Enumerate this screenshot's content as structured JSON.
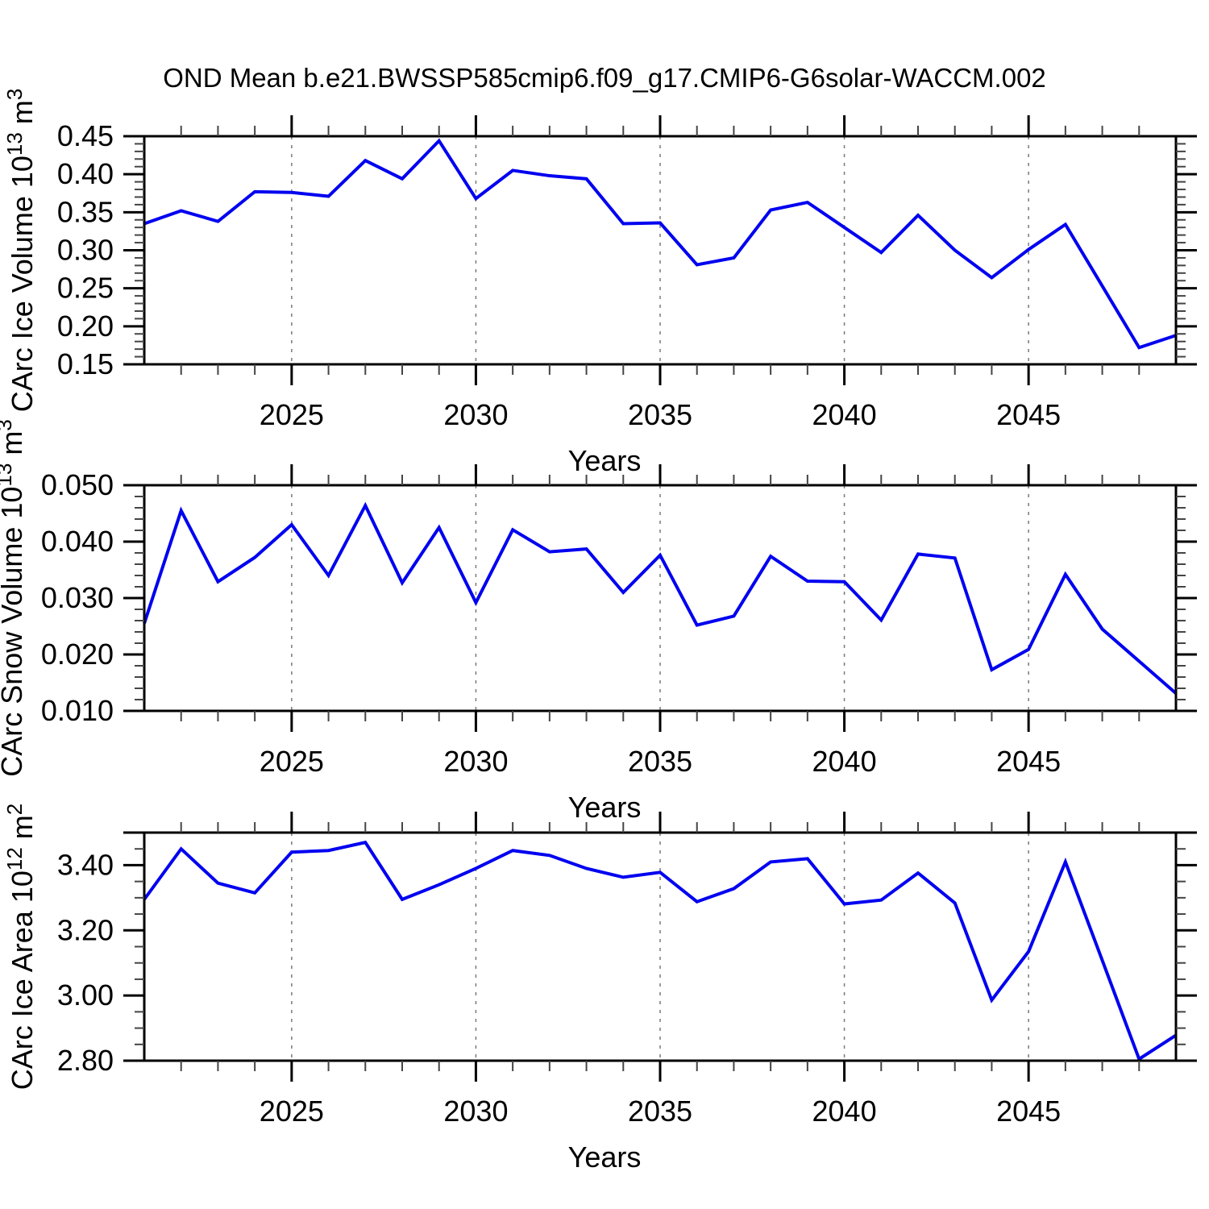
{
  "title": "OND Mean b.e21.BWSSP585cmip6.f09_g17.CMIP6-G6solar-WACCM.002",
  "colors": {
    "line": "#0000f0",
    "grid": "#7a7a7a",
    "axis": "#000000",
    "minor_tick": "#444444",
    "background": "#ffffff"
  },
  "chart_data": [
    {
      "type": "line",
      "panel": "ice-volume",
      "ylabel": "CArc Ice Volume 10^13 m^3",
      "ylabel_segments": [
        {
          "text": "CArc Ice Volume 10"
        },
        {
          "text": "13",
          "sup": true
        },
        {
          "text": " m"
        },
        {
          "text": "3",
          "sup": true
        }
      ],
      "xlabel": "Years",
      "x": [
        2021,
        2022,
        2023,
        2024,
        2025,
        2026,
        2027,
        2028,
        2029,
        2030,
        2031,
        2032,
        2033,
        2034,
        2035,
        2036,
        2037,
        2038,
        2039,
        2040,
        2041,
        2042,
        2043,
        2044,
        2045,
        2046,
        2047,
        2048,
        2049
      ],
      "values": [
        0.335,
        0.352,
        0.338,
        0.377,
        0.376,
        0.371,
        0.418,
        0.394,
        0.444,
        0.368,
        0.405,
        0.398,
        0.394,
        0.335,
        0.336,
        0.281,
        0.29,
        0.353,
        0.363,
        0.33,
        0.297,
        0.346,
        0.3,
        0.264,
        0.301,
        0.334,
        0.253,
        0.172,
        0.188
      ],
      "xlim": [
        2021,
        2049
      ],
      "ylim": [
        0.15,
        0.45
      ],
      "x_major_ticks": [
        2025,
        2030,
        2035,
        2040,
        2045
      ],
      "x_tick_labels": [
        "2025",
        "2030",
        "2035",
        "2040",
        "2045"
      ],
      "x_minor_step": 1,
      "y_major_ticks": [
        0.15,
        0.2,
        0.25,
        0.3,
        0.35,
        0.4,
        0.45
      ],
      "y_tick_labels": [
        "0.15",
        "0.20",
        "0.25",
        "0.30",
        "0.35",
        "0.40",
        "0.45"
      ],
      "y_minor_step": 0.01,
      "grid": "vertical-dashed-at-x-majors",
      "legend": null
    },
    {
      "type": "line",
      "panel": "snow-volume",
      "ylabel": "CArc Snow Volume 10^13 m^3",
      "ylabel_segments": [
        {
          "text": "CArc Snow Volume 10"
        },
        {
          "text": "13",
          "sup": true
        },
        {
          "text": " m"
        },
        {
          "text": "3",
          "sup": true
        }
      ],
      "xlabel": "Years",
      "x": [
        2021,
        2022,
        2023,
        2024,
        2025,
        2026,
        2027,
        2028,
        2029,
        2030,
        2031,
        2032,
        2033,
        2034,
        2035,
        2036,
        2037,
        2038,
        2039,
        2040,
        2041,
        2042,
        2043,
        2044,
        2045,
        2046,
        2047,
        2048,
        2049
      ],
      "values": [
        0.0255,
        0.0455,
        0.0329,
        0.0372,
        0.043,
        0.034,
        0.0464,
        0.0327,
        0.0425,
        0.0292,
        0.0421,
        0.0382,
        0.0387,
        0.031,
        0.0376,
        0.0252,
        0.0268,
        0.0374,
        0.033,
        0.0329,
        0.0261,
        0.0378,
        0.0371,
        0.0173,
        0.0209,
        0.0342,
        0.0245,
        0.0188,
        0.0131
      ],
      "xlim": [
        2021,
        2049
      ],
      "ylim": [
        0.01,
        0.05
      ],
      "x_major_ticks": [
        2025,
        2030,
        2035,
        2040,
        2045
      ],
      "x_tick_labels": [
        "2025",
        "2030",
        "2035",
        "2040",
        "2045"
      ],
      "x_minor_step": 1,
      "y_major_ticks": [
        0.01,
        0.02,
        0.03,
        0.04,
        0.05
      ],
      "y_tick_labels": [
        "0.010",
        "0.020",
        "0.030",
        "0.040",
        "0.050"
      ],
      "y_minor_step": 0.002,
      "grid": "vertical-dashed-at-x-majors",
      "legend": null
    },
    {
      "type": "line",
      "panel": "ice-area",
      "ylabel": "CArc Ice Area 10^12 m^2",
      "ylabel_segments": [
        {
          "text": "CArc Ice Area 10"
        },
        {
          "text": "12",
          "sup": true
        },
        {
          "text": " m"
        },
        {
          "text": "2",
          "sup": true
        }
      ],
      "xlabel": "Years",
      "x": [
        2021,
        2022,
        2023,
        2024,
        2025,
        2026,
        2027,
        2028,
        2029,
        2030,
        2031,
        2032,
        2033,
        2034,
        2035,
        2036,
        2037,
        2038,
        2039,
        2040,
        2041,
        2042,
        2043,
        2044,
        2045,
        2046,
        2047,
        2048,
        2049
      ],
      "values": [
        3.295,
        3.45,
        3.345,
        3.315,
        3.44,
        3.445,
        3.47,
        3.295,
        3.34,
        3.39,
        3.445,
        3.43,
        3.39,
        3.363,
        3.378,
        3.288,
        3.328,
        3.41,
        3.42,
        3.281,
        3.293,
        3.376,
        3.284,
        2.986,
        3.135,
        3.41,
        3.108,
        2.805,
        2.878
      ],
      "xlim": [
        2021,
        2049
      ],
      "ylim": [
        2.8,
        3.5
      ],
      "x_major_ticks": [
        2025,
        2030,
        2035,
        2040,
        2045
      ],
      "x_tick_labels": [
        "2025",
        "2030",
        "2035",
        "2040",
        "2045"
      ],
      "x_minor_step": 1,
      "y_major_ticks": [
        2.8,
        3.0,
        3.2,
        3.4,
        3.5
      ],
      "y_tick_labels": [
        "2.80",
        "3.00",
        "3.20",
        "3.40",
        ""
      ],
      "y_minor_step": 0.05,
      "grid": "vertical-dashed-at-x-majors",
      "legend": null
    }
  ]
}
